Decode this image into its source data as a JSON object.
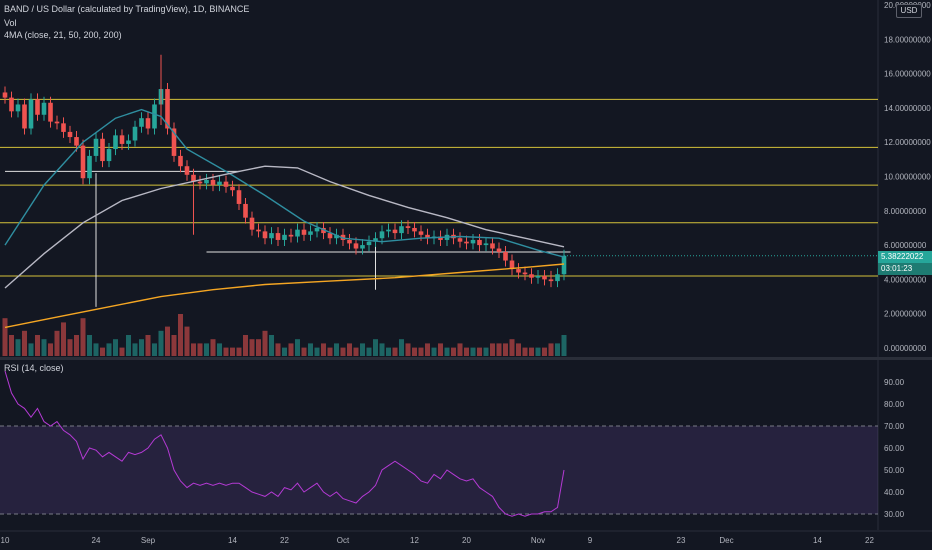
{
  "chart_data": {
    "type": "candlestick",
    "title": "BAND / US Dollar (calculated by TradingView), 1D, BINANCE",
    "currency_button": "USD",
    "indicators": {
      "volume_label": "Vol",
      "ma_label": "4MA (close, 21, 50, 200, 200)"
    },
    "y_axis": {
      "range": [
        0,
        20
      ],
      "ticks": [
        "0.00000000",
        "2.00000000",
        "4.00000000",
        "6.00000000",
        "8.00000000",
        "10.00000000",
        "12.00000000",
        "14.00000000",
        "16.00000000",
        "18.00000000",
        "20.00000000"
      ]
    },
    "x_axis": {
      "labels": [
        {
          "day": 0,
          "text": "10"
        },
        {
          "day": 14,
          "text": "24"
        },
        {
          "day": 22,
          "text": "Sep"
        },
        {
          "day": 35,
          "text": "14"
        },
        {
          "day": 43,
          "text": "22"
        },
        {
          "day": 52,
          "text": "Oct"
        },
        {
          "day": 63,
          "text": "12"
        },
        {
          "day": 71,
          "text": "20"
        },
        {
          "day": 82,
          "text": "Nov"
        },
        {
          "day": 90,
          "text": "9"
        },
        {
          "day": 104,
          "text": "23"
        },
        {
          "day": 111,
          "text": "Dec"
        },
        {
          "day": 125,
          "text": "14"
        },
        {
          "day": 133,
          "text": "22"
        }
      ]
    },
    "last_price": "5.38222022",
    "countdown": "03:01:23",
    "horizontal_levels": [
      14.5,
      11.7,
      9.5,
      7.3,
      4.2
    ],
    "close": [
      14.6,
      13.8,
      14.2,
      12.8,
      14.5,
      13.6,
      14.3,
      13.2,
      13.1,
      12.6,
      12.3,
      11.8,
      9.9,
      11.2,
      12.2,
      10.9,
      11.6,
      12.4,
      11.9,
      12.1,
      12.9,
      13.4,
      12.8,
      14.2,
      15.1,
      12.8,
      11.2,
      10.6,
      10.1,
      9.7,
      9.6,
      9.8,
      9.5,
      9.7,
      9.4,
      9.2,
      8.4,
      7.6,
      6.9,
      6.8,
      6.4,
      6.7,
      6.3,
      6.6,
      6.5,
      6.9,
      6.6,
      6.8,
      7.0,
      6.7,
      6.4,
      6.6,
      6.3,
      6.1,
      5.8,
      6.0,
      6.2,
      6.4,
      6.8,
      6.9,
      6.7,
      7.1,
      7.0,
      6.8,
      6.6,
      6.4,
      6.5,
      6.3,
      6.6,
      6.4,
      6.2,
      6.1,
      6.3,
      6.0,
      6.1,
      5.8,
      5.6,
      5.1,
      4.6,
      4.4,
      4.3,
      4.1,
      4.2,
      4.0,
      3.9,
      4.3,
      5.38
    ],
    "wicks": [
      {
        "day": 14,
        "high": 10.2,
        "low": 2.4
      },
      {
        "day": 24,
        "high": 17.1,
        "low": 13.0
      },
      {
        "day": 29,
        "high": 9.9,
        "low": 6.6
      },
      {
        "day": 57,
        "high": 5.9,
        "low": 3.4
      },
      {
        "day": 84,
        "high": 4.5,
        "low": 3.6
      }
    ],
    "support_lines": [
      {
        "from_day": 0,
        "to_day": 36,
        "price": 10.3
      },
      {
        "from_day": 31,
        "to_day": 87,
        "price": 5.6
      }
    ],
    "moving_averages": [
      {
        "period": 21,
        "color": "#2f8ea0",
        "points": [
          [
            0,
            6.0
          ],
          [
            6,
            9.5
          ],
          [
            12,
            12.0
          ],
          [
            17,
            13.4
          ],
          [
            21,
            13.9
          ],
          [
            24,
            13.5
          ],
          [
            28,
            11.6
          ],
          [
            34,
            10.3
          ],
          [
            40,
            8.9
          ],
          [
            46,
            7.4
          ],
          [
            52,
            6.4
          ],
          [
            58,
            6.2
          ],
          [
            64,
            6.4
          ],
          [
            70,
            6.5
          ],
          [
            76,
            6.4
          ],
          [
            82,
            5.7
          ],
          [
            86,
            5.3
          ]
        ]
      },
      {
        "period": 50,
        "color": "#b8b8c4",
        "points": [
          [
            0,
            3.5
          ],
          [
            6,
            5.5
          ],
          [
            12,
            7.3
          ],
          [
            18,
            8.6
          ],
          [
            24,
            9.3
          ],
          [
            30,
            9.8
          ],
          [
            36,
            10.3
          ],
          [
            40,
            10.6
          ],
          [
            45,
            10.5
          ],
          [
            50,
            9.7
          ],
          [
            56,
            8.9
          ],
          [
            62,
            8.2
          ],
          [
            68,
            7.6
          ],
          [
            74,
            6.9
          ],
          [
            80,
            6.4
          ],
          [
            86,
            5.9
          ]
        ]
      },
      {
        "period": 200,
        "color": "#f5a623",
        "points": [
          [
            0,
            1.2
          ],
          [
            8,
            1.8
          ],
          [
            16,
            2.4
          ],
          [
            24,
            3.0
          ],
          [
            32,
            3.4
          ],
          [
            40,
            3.7
          ],
          [
            50,
            3.9
          ],
          [
            60,
            4.1
          ],
          [
            70,
            4.4
          ],
          [
            80,
            4.7
          ],
          [
            86,
            4.9
          ]
        ]
      }
    ],
    "volume": [
      0.9,
      0.5,
      0.4,
      0.6,
      0.3,
      0.5,
      0.4,
      0.3,
      0.6,
      0.8,
      0.4,
      0.5,
      0.9,
      0.5,
      0.3,
      0.2,
      0.3,
      0.4,
      0.2,
      0.5,
      0.3,
      0.4,
      0.5,
      0.3,
      0.6,
      0.7,
      0.5,
      1.0,
      0.7,
      0.3,
      0.3,
      0.3,
      0.4,
      0.3,
      0.2,
      0.2,
      0.2,
      0.5,
      0.4,
      0.4,
      0.6,
      0.5,
      0.3,
      0.2,
      0.3,
      0.4,
      0.2,
      0.3,
      0.2,
      0.3,
      0.2,
      0.3,
      0.2,
      0.3,
      0.2,
      0.3,
      0.2,
      0.4,
      0.3,
      0.2,
      0.2,
      0.4,
      0.3,
      0.2,
      0.2,
      0.3,
      0.2,
      0.3,
      0.2,
      0.2,
      0.3,
      0.2,
      0.2,
      0.2,
      0.2,
      0.3,
      0.3,
      0.3,
      0.4,
      0.3,
      0.2,
      0.2,
      0.2,
      0.2,
      0.3,
      0.3,
      0.5
    ],
    "rsi": {
      "label": "RSI (14, close)",
      "range": [
        25,
        100
      ],
      "ticks": [
        "30.00",
        "40.00",
        "50.00",
        "60.00",
        "70.00",
        "80.00",
        "90.00"
      ],
      "band": [
        30,
        70
      ],
      "values": [
        95,
        85,
        80,
        78,
        74,
        78,
        72,
        70,
        72,
        68,
        66,
        63,
        55,
        60,
        59,
        56,
        58,
        56,
        54,
        58,
        57,
        58,
        60,
        64,
        66,
        60,
        50,
        45,
        42,
        44,
        43,
        44,
        43,
        44,
        43,
        44,
        44,
        42,
        40,
        39,
        38,
        40,
        38,
        42,
        41,
        44,
        40,
        42,
        44,
        40,
        38,
        40,
        37,
        36,
        35,
        38,
        40,
        43,
        50,
        52,
        54,
        52,
        50,
        48,
        45,
        44,
        48,
        46,
        50,
        48,
        46,
        45,
        46,
        42,
        40,
        38,
        33,
        30,
        29,
        30,
        29,
        30,
        30,
        31,
        31,
        33,
        50
      ]
    }
  }
}
